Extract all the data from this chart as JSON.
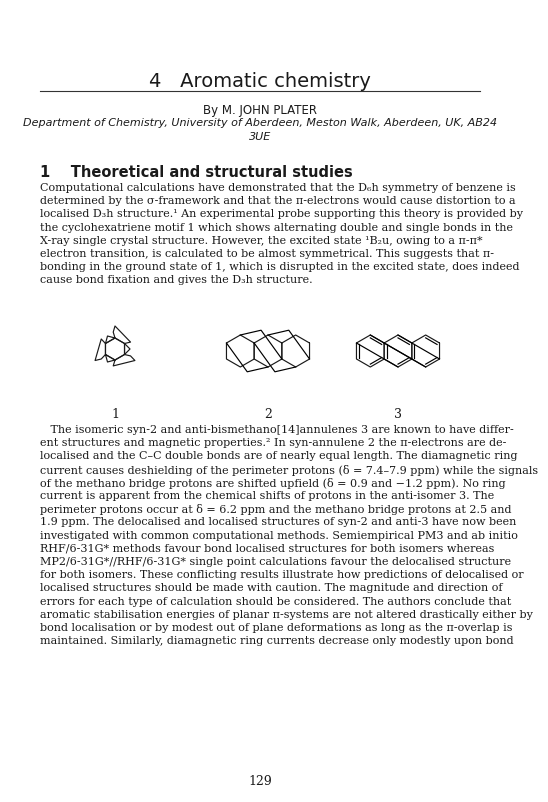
{
  "title": "4   Aromatic chemistry",
  "author": "By M. JOHN PLATER",
  "affil_line1": "Department of Chemistry, University of Aberdeen, Meston Walk, Aberdeen, UK, AB24",
  "affil_line2": "3UE",
  "section1": "1    Theoretical and structural studies",
  "p1_lines": [
    "Computational calculations have demonstrated that the D₆h symmetry of benzene is",
    "determined by the σ-framework and that the π-electrons would cause distortion to a",
    "localised D₃h structure.¹ An experimental probe supporting this theory is provided by",
    "the cyclohexatriene motif 1 which shows alternating double and single bonds in the",
    "X-ray single crystal structure. However, the excited state ¹B₂u, owing to a π-π*",
    "electron transition, is calculated to be almost symmetrical. This suggests that π-",
    "bonding in the ground state of 1, which is disrupted in the excited state, does indeed",
    "cause bond fixation and gives the D₃h structure."
  ],
  "p2_lines": [
    "   The isomeric syn-2 and anti-bismethano[14]annulenes 3 are known to have differ-",
    "ent structures and magnetic properties.² In syn-annulene 2 the π-electrons are de-",
    "localised and the C–C double bonds are of nearly equal length. The diamagnetic ring",
    "current causes deshielding of the perimeter protons (δ = 7.4–7.9 ppm) while the signals",
    "of the methano bridge protons are shifted upfield (δ = 0.9 and −1.2 ppm). No ring",
    "current is apparent from the chemical shifts of protons in the anti-isomer 3. The",
    "perimeter protons occur at δ = 6.2 ppm and the methano bridge protons at 2.5 and",
    "1.9 ppm. The delocalised and localised structures of syn-2 and anti-3 have now been",
    "investigated with common computational methods. Semiempirical PM3 and ab initio",
    "RHF/6-31G* methods favour bond localised structures for both isomers whereas",
    "MP2/6-31G*//RHF/6-31G* single point calculations favour the delocalised structure",
    "for both isomers. These conflicting results illustrate how predictions of delocalised or",
    "localised structures should be made with caution. The magnitude and direction of",
    "errors for each type of calculation should be considered. The authors conclude that",
    "aromatic stabilisation energies of planar π-systems are not altered drastically either by",
    "bond localisation or by modest out of plane deformations as long as the π-overlap is",
    "maintained. Similarly, diamagnetic ring currents decrease only modestly upon bond"
  ],
  "page_number": "129",
  "bg_color": "#ffffff"
}
